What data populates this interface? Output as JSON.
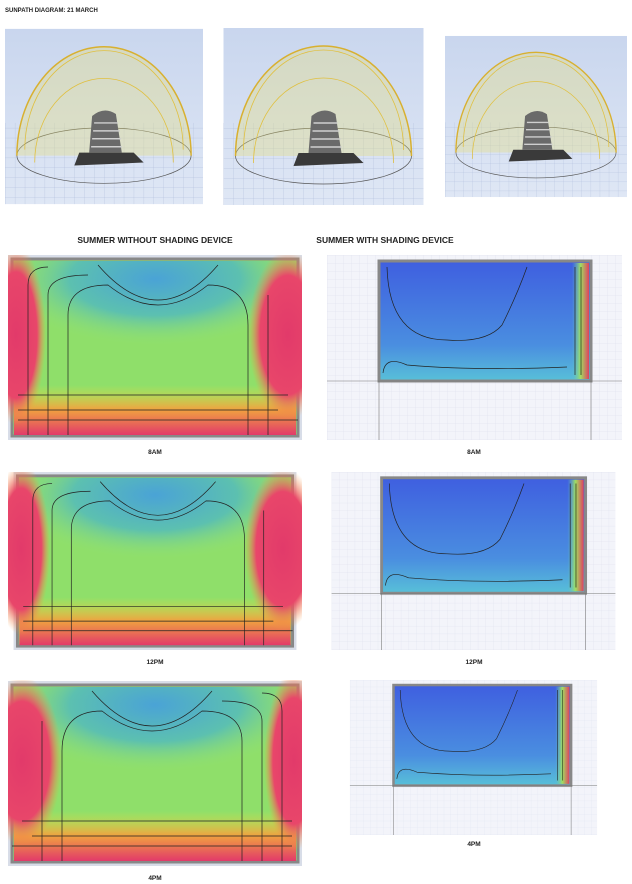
{
  "header": {
    "title": "SUNPATH DIAGRAM: 21 MARCH"
  },
  "columns": [
    "SUMMER WITHOUT SHADING DEVICE",
    "SUMMER WITH SHADING DEVICE"
  ],
  "rows": [
    {
      "left_label": "8AM",
      "right_label": "8AM"
    },
    {
      "left_label": "12PM",
      "right_label": "12PM"
    },
    {
      "left_label": "4PM",
      "right_label": "4PM"
    }
  ]
}
